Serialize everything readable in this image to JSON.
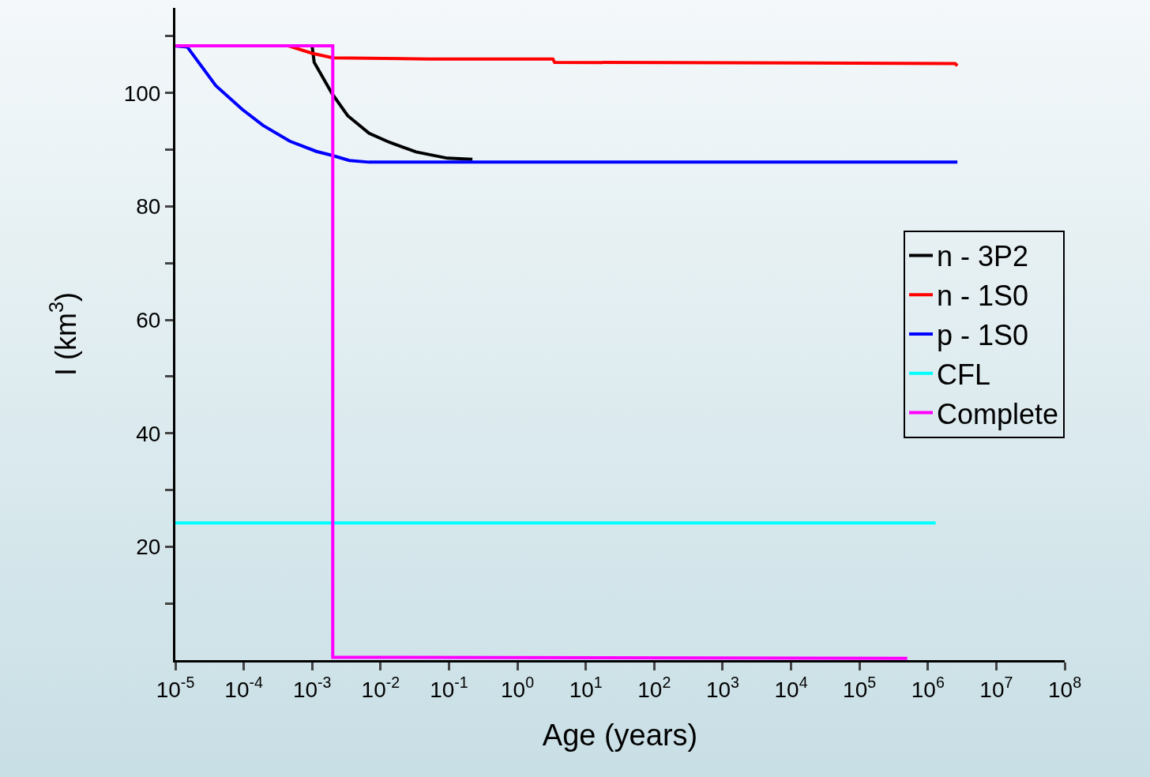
{
  "chart_data": {
    "type": "line",
    "xlabel": "Age (years)",
    "ylabel": "I (km$^{3}$)",
    "log": "x",
    "xlim": [
      1e-05,
      100000000.0
    ],
    "xticks": [
      {
        "value": 1e-05,
        "label": "10$^{-5}$"
      },
      {
        "value": 0.0001,
        "label": "10$^{-4}$"
      },
      {
        "value": 0.001,
        "label": "10$^{-3}$"
      },
      {
        "value": 0.01,
        "label": "10$^{-2}$"
      },
      {
        "value": 0.1,
        "label": "10$^{-1}$"
      },
      {
        "value": 1,
        "label": "10$^{0}$"
      },
      {
        "value": 10,
        "label": "10$^{1}$"
      },
      {
        "value": 100,
        "label": "10$^{2}$"
      },
      {
        "value": 1000,
        "label": "10$^{3}$"
      },
      {
        "value": 10000,
        "label": "10$^{4}$"
      },
      {
        "value": 100000,
        "label": "10$^{5}$"
      },
      {
        "value": 1000000,
        "label": "10$^{6}$"
      },
      {
        "value": 10000000,
        "label": "10$^{7}$"
      },
      {
        "value": 100000000,
        "label": "10$^{8}$"
      }
    ],
    "ylim": [
      0,
      115
    ],
    "yticks": [
      {
        "value": 10,
        "label": null
      },
      20,
      {
        "value": 30,
        "label": null
      },
      40,
      {
        "value": 50,
        "label": null
      },
      60,
      {
        "value": 70,
        "label": null
      },
      80,
      {
        "value": 90,
        "label": null
      },
      100,
      {
        "value": 110,
        "label": null
      }
    ],
    "grid": false,
    "legend": "right",
    "marker": "none",
    "line_style": "solid",
    "series": [
      {
        "name": "n - 3P2",
        "color": "#000000",
        "x": [
          0.001,
          0.00107,
          0.00195,
          0.0033,
          0.0068,
          0.0135,
          0.033,
          0.095,
          0.22
        ],
        "values": [
          108.2,
          105.4,
          99.9,
          96,
          92.9,
          91.3,
          89.6,
          88.5,
          88.3
        ]
      },
      {
        "name": "n - 1S0",
        "color": "#ff0000",
        "x": [
          0.00045,
          0.001,
          0.002,
          0.05,
          3.3,
          3.5,
          2500000,
          2700000
        ],
        "values": [
          108.3,
          107,
          106.2,
          106,
          106,
          105.4,
          105.2,
          104.8
        ]
      },
      {
        "name": "p - 1S0",
        "color": "#0000ff",
        "x": [
          1e-05,
          1.5e-05,
          3.9e-05,
          9.5e-05,
          0.00019,
          0.00047,
          0.00115,
          0.00195,
          0.0035,
          0.0068,
          2700000
        ],
        "values": [
          108.3,
          108.1,
          101.3,
          97.1,
          94.3,
          91.5,
          89.7,
          89,
          88.1,
          87.8,
          87.8
        ]
      },
      {
        "name": "CFL",
        "color": "#00ffff",
        "x": [
          1e-05,
          1300000
        ],
        "values": [
          24.2,
          24.2
        ]
      },
      {
        "name": "Complete",
        "color": "#ff00ff",
        "x": [
          1e-05,
          0.002,
          0.002,
          500000
        ],
        "values": [
          108.3,
          108.3,
          0.5,
          0.3
        ]
      }
    ]
  }
}
